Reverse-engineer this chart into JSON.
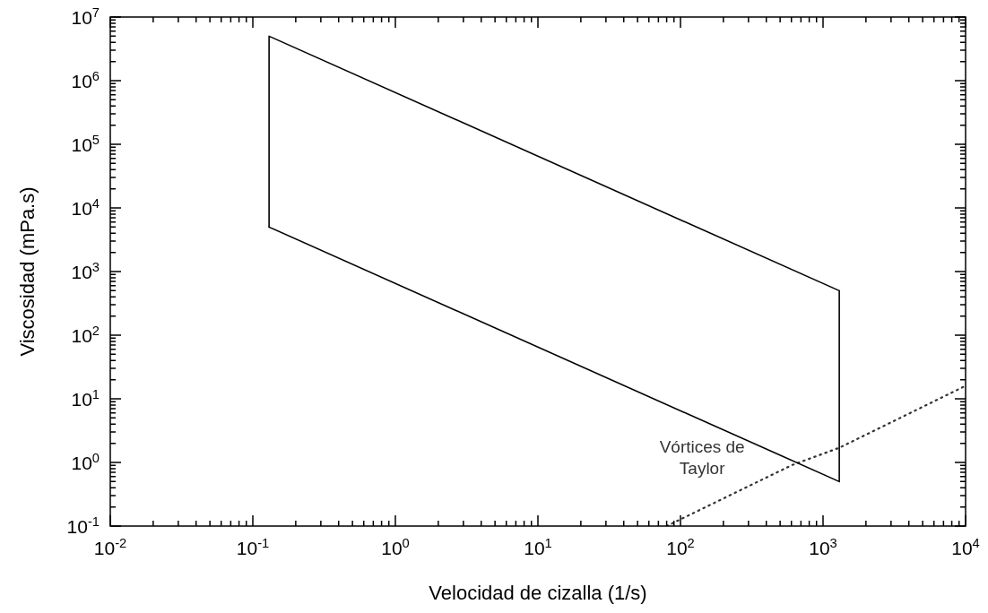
{
  "chart_data": {
    "type": "line",
    "xlabel": "Velocidad de cizalla (1/s)",
    "ylabel": "Viscosidad (mPa.s)",
    "log": "xy",
    "grid": false,
    "legend": false,
    "marker": "none",
    "xlim": [
      0.01,
      10000
    ],
    "ylim": [
      0.1,
      10000000
    ],
    "xticks": [
      {
        "value": 0.01,
        "label": "10$^{-2}$"
      },
      {
        "value": 0.02,
        "label": null
      },
      {
        "value": 0.03,
        "label": null
      },
      {
        "value": 0.04,
        "label": null
      },
      {
        "value": 0.05,
        "label": null
      },
      {
        "value": 0.06,
        "label": null
      },
      {
        "value": 0.07,
        "label": null
      },
      {
        "value": 0.08,
        "label": null
      },
      {
        "value": 0.09,
        "label": null
      },
      {
        "value": 0.1,
        "label": "10$^{-1}$"
      },
      {
        "value": 0.2,
        "label": null
      },
      {
        "value": 0.3,
        "label": null
      },
      {
        "value": 0.4,
        "label": null
      },
      {
        "value": 0.5,
        "label": null
      },
      {
        "value": 0.6,
        "label": null
      },
      {
        "value": 0.7,
        "label": null
      },
      {
        "value": 0.8,
        "label": null
      },
      {
        "value": 0.9,
        "label": null
      },
      {
        "value": 1,
        "label": "10$^{0}$"
      },
      {
        "value": 2,
        "label": null
      },
      {
        "value": 3,
        "label": null
      },
      {
        "value": 4,
        "label": null
      },
      {
        "value": 5,
        "label": null
      },
      {
        "value": 6,
        "label": null
      },
      {
        "value": 7,
        "label": null
      },
      {
        "value": 8,
        "label": null
      },
      {
        "value": 9,
        "label": null
      },
      {
        "value": 10,
        "label": "10$^{1}$"
      },
      {
        "value": 20,
        "label": null
      },
      {
        "value": 30,
        "label": null
      },
      {
        "value": 40,
        "label": null
      },
      {
        "value": 50,
        "label": null
      },
      {
        "value": 60,
        "label": null
      },
      {
        "value": 70,
        "label": null
      },
      {
        "value": 80,
        "label": null
      },
      {
        "value": 90,
        "label": null
      },
      {
        "value": 100,
        "label": "10$^{2}$"
      },
      {
        "value": 200,
        "label": null
      },
      {
        "value": 300,
        "label": null
      },
      {
        "value": 400,
        "label": null
      },
      {
        "value": 500,
        "label": null
      },
      {
        "value": 600,
        "label": null
      },
      {
        "value": 700,
        "label": null
      },
      {
        "value": 800,
        "label": null
      },
      {
        "value": 900,
        "label": null
      },
      {
        "value": 1000,
        "label": "10$^{3}$"
      },
      {
        "value": 2000,
        "label": null
      },
      {
        "value": 3000,
        "label": null
      },
      {
        "value": 4000,
        "label": null
      },
      {
        "value": 5000,
        "label": null
      },
      {
        "value": 6000,
        "label": null
      },
      {
        "value": 7000,
        "label": null
      },
      {
        "value": 8000,
        "label": null
      },
      {
        "value": 9000,
        "label": null
      },
      {
        "value": 10000,
        "label": "10$^{4}$"
      }
    ],
    "yticks": [
      {
        "value": 0.1,
        "label": "10$^{-1}$"
      },
      {
        "value": 0.2,
        "label": null
      },
      {
        "value": 0.3,
        "label": null
      },
      {
        "value": 0.4,
        "label": null
      },
      {
        "value": 0.5,
        "label": null
      },
      {
        "value": 0.6,
        "label": null
      },
      {
        "value": 0.7,
        "label": null
      },
      {
        "value": 0.8,
        "label": null
      },
      {
        "value": 0.9,
        "label": null
      },
      {
        "value": 1,
        "label": "10$^{0}$"
      },
      {
        "value": 2,
        "label": null
      },
      {
        "value": 3,
        "label": null
      },
      {
        "value": 4,
        "label": null
      },
      {
        "value": 5,
        "label": null
      },
      {
        "value": 6,
        "label": null
      },
      {
        "value": 7,
        "label": null
      },
      {
        "value": 8,
        "label": null
      },
      {
        "value": 9,
        "label": null
      },
      {
        "value": 10,
        "label": "10$^{1}$"
      },
      {
        "value": 20,
        "label": null
      },
      {
        "value": 30,
        "label": null
      },
      {
        "value": 40,
        "label": null
      },
      {
        "value": 50,
        "label": null
      },
      {
        "value": 60,
        "label": null
      },
      {
        "value": 70,
        "label": null
      },
      {
        "value": 80,
        "label": null
      },
      {
        "value": 90,
        "label": null
      },
      {
        "value": 100,
        "label": "10$^{2}$"
      },
      {
        "value": 200,
        "label": null
      },
      {
        "value": 300,
        "label": null
      },
      {
        "value": 400,
        "label": null
      },
      {
        "value": 500,
        "label": null
      },
      {
        "value": 600,
        "label": null
      },
      {
        "value": 700,
        "label": null
      },
      {
        "value": 800,
        "label": null
      },
      {
        "value": 900,
        "label": null
      },
      {
        "value": 1000,
        "label": "10$^{3}$"
      },
      {
        "value": 2000,
        "label": null
      },
      {
        "value": 3000,
        "label": null
      },
      {
        "value": 4000,
        "label": null
      },
      {
        "value": 5000,
        "label": null
      },
      {
        "value": 6000,
        "label": null
      },
      {
        "value": 7000,
        "label": null
      },
      {
        "value": 8000,
        "label": null
      },
      {
        "value": 9000,
        "label": null
      },
      {
        "value": 10000,
        "label": "10$^{4}$"
      },
      {
        "value": 20000,
        "label": null
      },
      {
        "value": 30000,
        "label": null
      },
      {
        "value": 40000,
        "label": null
      },
      {
        "value": 50000,
        "label": null
      },
      {
        "value": 60000,
        "label": null
      },
      {
        "value": 70000,
        "label": null
      },
      {
        "value": 80000,
        "label": null
      },
      {
        "value": 90000,
        "label": null
      },
      {
        "value": 100000,
        "label": "10$^{5}$"
      },
      {
        "value": 200000,
        "label": null
      },
      {
        "value": 300000,
        "label": null
      },
      {
        "value": 400000,
        "label": null
      },
      {
        "value": 500000,
        "label": null
      },
      {
        "value": 600000,
        "label": null
      },
      {
        "value": 700000,
        "label": null
      },
      {
        "value": 800000,
        "label": null
      },
      {
        "value": 900000,
        "label": null
      },
      {
        "value": 1000000,
        "label": "10$^{6}$"
      },
      {
        "value": 2000000,
        "label": null
      },
      {
        "value": 3000000,
        "label": null
      },
      {
        "value": 4000000,
        "label": null
      },
      {
        "value": 5000000,
        "label": null
      },
      {
        "value": 6000000,
        "label": null
      },
      {
        "value": 7000000,
        "label": null
      },
      {
        "value": 8000000,
        "label": null
      },
      {
        "value": 9000000,
        "label": null
      },
      {
        "value": 10000000,
        "label": "10$^{7}$"
      }
    ],
    "series": [
      {
        "color": "#000000",
        "line_style": "solid",
        "x": [
          0.13,
          0.13,
          1300,
          1300
        ],
        "values": [
          5000,
          5000000,
          500,
          0.5
        ]
      },
      {
        "color": "#000000",
        "line_style": "solid",
        "x": [
          0.13,
          1300
        ],
        "values": [
          5000,
          0.5
        ]
      },
      {
        "name": "Vórtices de Taylor",
        "color": "#333333",
        "line_style": "dotted",
        "x": [
          80,
          600,
          1300,
          10000
        ],
        "values": [
          0.1,
          0.9,
          1.7,
          16
        ]
      }
    ]
  }
}
